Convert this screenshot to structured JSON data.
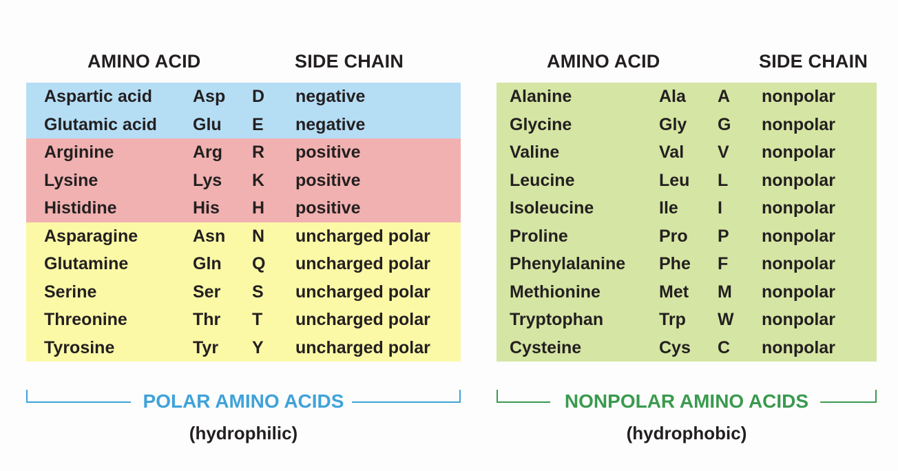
{
  "colors": {
    "negative": "#b5def5",
    "positive": "#f1b1b1",
    "uncharged": "#fbf9a6",
    "nonpolar": "#d5e5a3",
    "polar_accent": "#3fa2d9",
    "nonpolar_accent": "#3a9a4e"
  },
  "polar": {
    "headers": {
      "amino_acid": "AMINO ACID",
      "side_chain": "SIDE CHAIN"
    },
    "rows": [
      {
        "name": "Aspartic acid",
        "abbr3": "Asp",
        "abbr1": "D",
        "side_chain": "negative",
        "group": "negative"
      },
      {
        "name": "Glutamic acid",
        "abbr3": "Glu",
        "abbr1": "E",
        "side_chain": "negative",
        "group": "negative"
      },
      {
        "name": "Arginine",
        "abbr3": "Arg",
        "abbr1": "R",
        "side_chain": "positive",
        "group": "positive"
      },
      {
        "name": "Lysine",
        "abbr3": "Lys",
        "abbr1": "K",
        "side_chain": "positive",
        "group": "positive"
      },
      {
        "name": "Histidine",
        "abbr3": "His",
        "abbr1": "H",
        "side_chain": "positive",
        "group": "positive"
      },
      {
        "name": "Asparagine",
        "abbr3": "Asn",
        "abbr1": "N",
        "side_chain": "uncharged polar",
        "group": "uncharged"
      },
      {
        "name": "Glutamine",
        "abbr3": "Gln",
        "abbr1": "Q",
        "side_chain": "uncharged polar",
        "group": "uncharged"
      },
      {
        "name": "Serine",
        "abbr3": "Ser",
        "abbr1": "S",
        "side_chain": "uncharged polar",
        "group": "uncharged"
      },
      {
        "name": "Threonine",
        "abbr3": "Thr",
        "abbr1": "T",
        "side_chain": "uncharged polar",
        "group": "uncharged"
      },
      {
        "name": "Tyrosine",
        "abbr3": "Tyr",
        "abbr1": "Y",
        "side_chain": "uncharged polar",
        "group": "uncharged"
      }
    ],
    "group_label": "POLAR AMINO ACIDS",
    "group_sub": "(hydrophilic)"
  },
  "nonpolar": {
    "headers": {
      "amino_acid": "AMINO ACID",
      "side_chain": "SIDE CHAIN"
    },
    "rows": [
      {
        "name": "Alanine",
        "abbr3": "Ala",
        "abbr1": "A",
        "side_chain": "nonpolar",
        "group": "nonpolar"
      },
      {
        "name": "Glycine",
        "abbr3": "Gly",
        "abbr1": "G",
        "side_chain": "nonpolar",
        "group": "nonpolar"
      },
      {
        "name": "Valine",
        "abbr3": "Val",
        "abbr1": "V",
        "side_chain": "nonpolar",
        "group": "nonpolar"
      },
      {
        "name": "Leucine",
        "abbr3": "Leu",
        "abbr1": "L",
        "side_chain": "nonpolar",
        "group": "nonpolar"
      },
      {
        "name": "Isoleucine",
        "abbr3": "Ile",
        "abbr1": "I",
        "side_chain": "nonpolar",
        "group": "nonpolar"
      },
      {
        "name": "Proline",
        "abbr3": "Pro",
        "abbr1": "P",
        "side_chain": "nonpolar",
        "group": "nonpolar"
      },
      {
        "name": "Phenylalanine",
        "abbr3": "Phe",
        "abbr1": "F",
        "side_chain": "nonpolar",
        "group": "nonpolar"
      },
      {
        "name": "Methionine",
        "abbr3": "Met",
        "abbr1": "M",
        "side_chain": "nonpolar",
        "group": "nonpolar"
      },
      {
        "name": "Tryptophan",
        "abbr3": "Trp",
        "abbr1": "W",
        "side_chain": "nonpolar",
        "group": "nonpolar"
      },
      {
        "name": "Cysteine",
        "abbr3": "Cys",
        "abbr1": "C",
        "side_chain": "nonpolar",
        "group": "nonpolar"
      }
    ],
    "group_label": "NONPOLAR AMINO ACIDS",
    "group_sub": "(hydrophobic)"
  }
}
